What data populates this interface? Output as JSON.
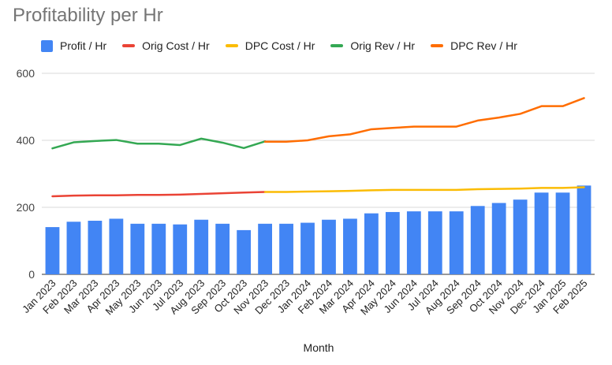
{
  "chart_data": {
    "type": "bar",
    "title": "Profitability per Hr",
    "xlabel": "Month",
    "ylabel": "",
    "ylim": [
      0,
      600
    ],
    "yticks": [
      0,
      200,
      400,
      600
    ],
    "grid": true,
    "legend_position": "top",
    "categories": [
      "Jan 2023",
      "Feb 2023",
      "Mar 2023",
      "Apr 2023",
      "May 2023",
      "Jun 2023",
      "Jul 2023",
      "Aug 2023",
      "Sep 2023",
      "Oct 2023",
      "Nov 2023",
      "Dec 2023",
      "Jan 2024",
      "Feb 2024",
      "Mar 2024",
      "Apr 2024",
      "May 2024",
      "Jun 2024",
      "Jul 2024",
      "Aug 2024",
      "Sep 2024",
      "Oct 2024",
      "Nov 2024",
      "Dec 2024",
      "Jan 2025",
      "Feb 2025"
    ],
    "series": [
      {
        "name": "Profit / Hr",
        "kind": "bar",
        "color": "#4285F4",
        "values": [
          141,
          157,
          160,
          166,
          151,
          151,
          149,
          163,
          151,
          132,
          151,
          151,
          154,
          163,
          166,
          182,
          186,
          188,
          188,
          188,
          204,
          213,
          223,
          244,
          244,
          265
        ]
      },
      {
        "name": "Orig Cost / Hr",
        "kind": "line",
        "color": "#EA4335",
        "values": [
          233,
          235,
          236,
          236,
          237,
          237,
          238,
          240,
          242,
          244,
          246,
          null,
          null,
          null,
          null,
          null,
          null,
          null,
          null,
          null,
          null,
          null,
          null,
          null,
          null,
          null
        ]
      },
      {
        "name": "DPC Cost / Hr",
        "kind": "line",
        "color": "#FBBC04",
        "values": [
          null,
          null,
          null,
          null,
          null,
          null,
          null,
          null,
          null,
          null,
          246,
          246,
          247,
          248,
          249,
          251,
          252,
          252,
          252,
          252,
          254,
          255,
          256,
          258,
          258,
          260
        ]
      },
      {
        "name": "Orig Rev / Hr",
        "kind": "line",
        "color": "#34A853",
        "values": [
          376,
          394,
          398,
          401,
          390,
          390,
          386,
          405,
          393,
          377,
          397,
          null,
          null,
          null,
          null,
          null,
          null,
          null,
          null,
          null,
          null,
          null,
          null,
          null,
          null,
          null
        ]
      },
      {
        "name": "DPC Rev / Hr",
        "kind": "line",
        "color": "#FF6D01",
        "values": [
          null,
          null,
          null,
          null,
          null,
          null,
          null,
          null,
          null,
          null,
          396,
          396,
          400,
          412,
          418,
          433,
          437,
          441,
          441,
          441,
          459,
          468,
          479,
          502,
          502,
          526
        ]
      }
    ]
  }
}
